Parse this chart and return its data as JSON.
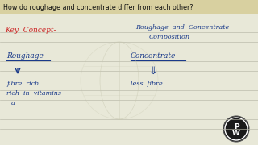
{
  "bg_color": "#e8e8d8",
  "line_color": "#b8b8a8",
  "title_text": "How do roughage and concentrate differ from each other?",
  "title_bg": "#d8d0a0",
  "title_color": "#111111",
  "key_concept_text": "Key  Concept-",
  "key_concept_color": "#cc2222",
  "heading_line1": "Roughage  and  Concentrate",
  "heading_line2": "Composition",
  "heading_color": "#1a3a8a",
  "roughage_label": "Roughage",
  "concentrate_label": "Concentrate",
  "label_color": "#1a3a8a",
  "roughage_arrow": "↓",
  "concentrate_arrow": "⇓",
  "roughage_desc1": "fibre  rich",
  "roughage_desc2": "rich  in  vitamins",
  "roughage_desc3": "a",
  "concentrate_desc": "less  fibre",
  "desc_color": "#1a3a8a",
  "pw_bg": "#1a1a1a",
  "pw_ring": "#ffffff",
  "pw_text": "#ffffff",
  "figsize": [
    3.2,
    1.8
  ],
  "dpi": 100
}
